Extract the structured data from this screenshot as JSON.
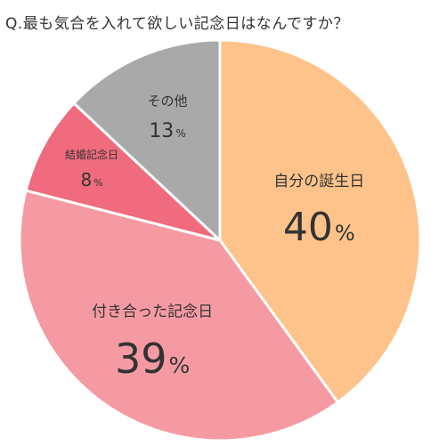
{
  "title": "Q.最も気合を入れて欲しい記念日はなんですか？",
  "colors": {
    "birthday": "#fec38a",
    "dating_anniversary": "#f59aa3",
    "wedding_anniversary": "#ef6b7d",
    "other": "#a9a9a9",
    "text": "#333333",
    "border": "#ffffff"
  },
  "chart_data": {
    "type": "pie",
    "title": "Q.最も気合を入れて欲しい記念日はなんですか？",
    "start_angle_deg": 0,
    "direction": "clockwise",
    "slices": [
      {
        "label": "自分の誕生日",
        "value": 40,
        "display": "40",
        "unit": "%",
        "color": "#fec38a"
      },
      {
        "label": "付き合った記念日",
        "value": 39,
        "display": "39",
        "unit": "%",
        "color": "#f59aa3"
      },
      {
        "label": "結婚記念日",
        "value": 8,
        "display": "8",
        "unit": "%",
        "color": "#ef6b7d"
      },
      {
        "label": "その他",
        "value": 13,
        "display": "13",
        "unit": "%",
        "color": "#a9a9a9"
      }
    ]
  }
}
